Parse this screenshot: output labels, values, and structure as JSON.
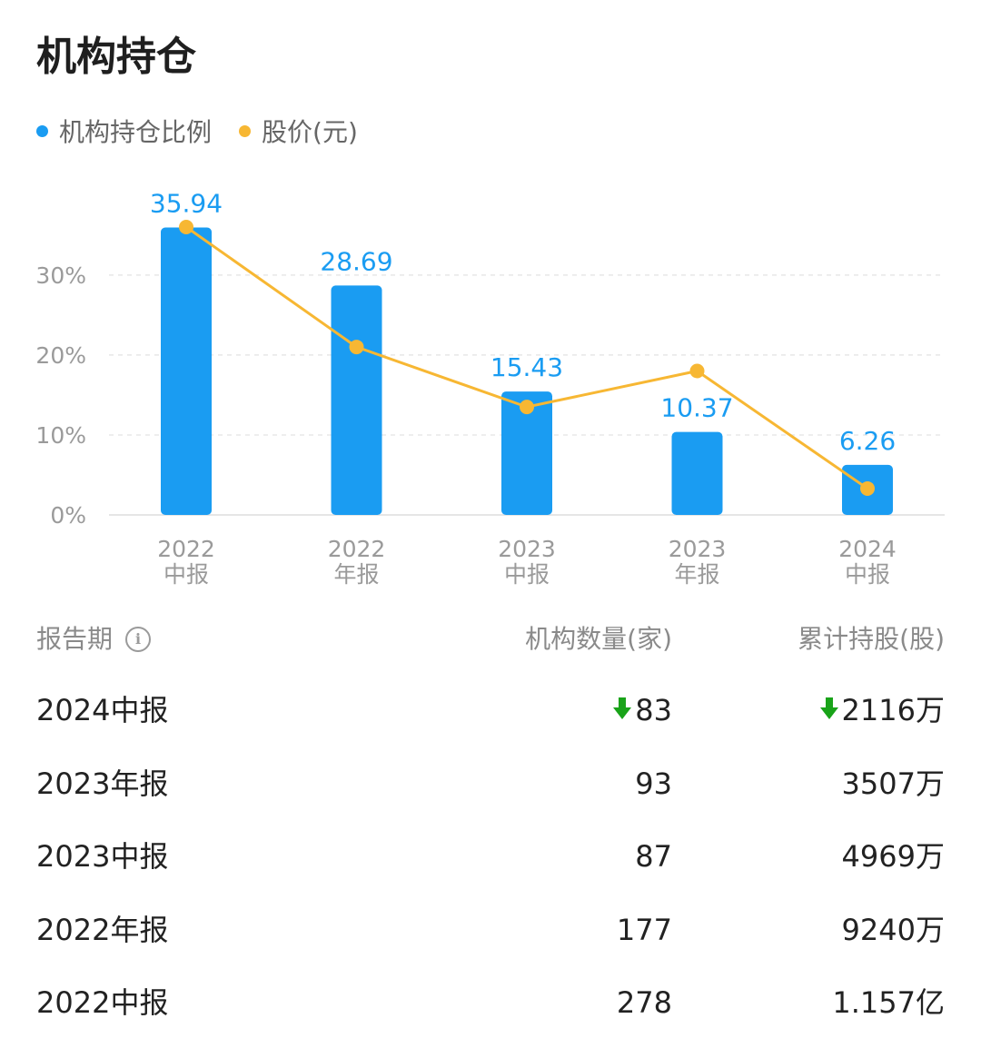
{
  "header": {
    "title": "机构持仓"
  },
  "legend": {
    "items": [
      {
        "label": "机构持仓比例",
        "color": "#1a9cf2"
      },
      {
        "label": "股价(元)",
        "color": "#f7b733"
      }
    ]
  },
  "chart_data": {
    "type": "bar",
    "categories": [
      [
        "2022",
        "中报"
      ],
      [
        "2022",
        "年报"
      ],
      [
        "2023",
        "中报"
      ],
      [
        "2023",
        "年报"
      ],
      [
        "2024",
        "中报"
      ]
    ],
    "series": [
      {
        "name": "机构持仓比例",
        "type": "bar",
        "color": "#1a9cf2",
        "values": [
          35.94,
          28.69,
          15.43,
          10.37,
          6.26
        ],
        "unit": "%"
      },
      {
        "name": "股价(元)",
        "type": "line",
        "color": "#f7b733",
        "relative_level": [
          0.36,
          0.21,
          0.135,
          0.18,
          0.033
        ]
      }
    ],
    "ylim": [
      0,
      36
    ],
    "yticks": [
      "0%",
      "10%",
      "20%",
      "30%"
    ],
    "grid": true,
    "legend_position": "top-left"
  },
  "table": {
    "headers": {
      "period": "报告期",
      "count": "机构数量(家)",
      "shares": "累计持股(股)"
    },
    "rows": [
      {
        "period": "2024中报",
        "count": "83",
        "shares": "2116万",
        "down": true
      },
      {
        "period": "2023年报",
        "count": "93",
        "shares": "3507万",
        "down": false
      },
      {
        "period": "2023中报",
        "count": "87",
        "shares": "4969万",
        "down": false
      },
      {
        "period": "2022年报",
        "count": "177",
        "shares": "9240万",
        "down": false
      },
      {
        "period": "2022中报",
        "count": "278",
        "shares": "1.157亿",
        "down": false
      }
    ]
  }
}
